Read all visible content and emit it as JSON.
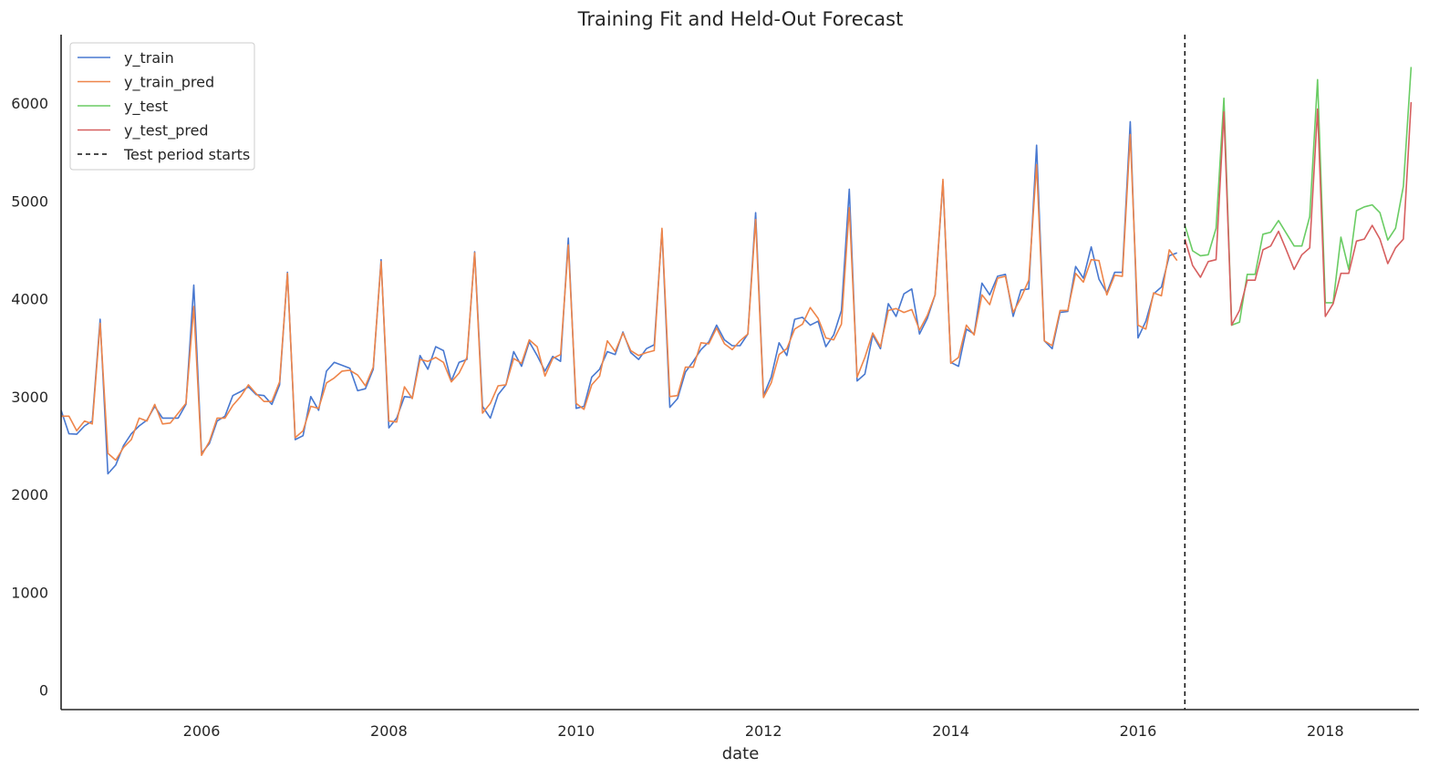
{
  "chart_data": {
    "type": "line",
    "title": "Training Fit and Held-Out Forecast",
    "xlabel": "date",
    "ylabel": "",
    "xlim": [
      "2004-07-01",
      "2019-01-01"
    ],
    "ylim": [
      -200,
      6700
    ],
    "x_ticks": [
      "2006",
      "2008",
      "2010",
      "2012",
      "2014",
      "2016",
      "2018"
    ],
    "y_ticks": [
      "0",
      "1000",
      "2000",
      "3000",
      "4000",
      "5000",
      "6000"
    ],
    "grid": false,
    "legend_position": "top-left",
    "test_start": "2016-07-01",
    "test_start_label": "Test period starts",
    "series": [
      {
        "name": "y_train",
        "color": "#4878d0",
        "start": "2004-07-01",
        "values": [
          2860,
          2620,
          2615,
          2700,
          2750,
          3790,
          2210,
          2300,
          2500,
          2620,
          2700,
          2760,
          2900,
          2780,
          2780,
          2780,
          2920,
          4140,
          2420,
          2520,
          2750,
          2800,
          3010,
          3050,
          3100,
          3020,
          3010,
          2920,
          3120,
          4270,
          2560,
          2600,
          3000,
          2860,
          3260,
          3350,
          3320,
          3290,
          3060,
          3080,
          3280,
          4400,
          2680,
          2780,
          3000,
          2990,
          3420,
          3280,
          3510,
          3470,
          3160,
          3350,
          3380,
          4480,
          2900,
          2780,
          3020,
          3120,
          3460,
          3310,
          3560,
          3420,
          3260,
          3410,
          3360,
          4620,
          2880,
          2900,
          3200,
          3280,
          3460,
          3430,
          3660,
          3450,
          3380,
          3490,
          3530,
          4700,
          2890,
          2980,
          3250,
          3360,
          3480,
          3560,
          3730,
          3580,
          3520,
          3520,
          3640,
          4880,
          3010,
          3200,
          3550,
          3420,
          3790,
          3810,
          3730,
          3770,
          3510,
          3630,
          3880,
          5120,
          3160,
          3230,
          3630,
          3490,
          3950,
          3820,
          4050,
          4100,
          3640,
          3800,
          4040,
          5200,
          3350,
          3310,
          3690,
          3640,
          4160,
          4040,
          4230,
          4250,
          3820,
          4090,
          4100,
          5570,
          3570,
          3490,
          3860,
          3870,
          4330,
          4210,
          4530,
          4200,
          4060,
          4270,
          4270,
          5810,
          3600,
          3770,
          4050,
          4120,
          4440,
          4470
        ]
      },
      {
        "name": "y_train_pred",
        "color": "#ee854a",
        "start": "2004-07-01",
        "values": [
          2800,
          2800,
          2650,
          2750,
          2720,
          3750,
          2420,
          2350,
          2480,
          2560,
          2780,
          2750,
          2920,
          2720,
          2730,
          2830,
          2930,
          3920,
          2400,
          2540,
          2780,
          2780,
          2910,
          3000,
          3120,
          3030,
          2950,
          2950,
          3150,
          4260,
          2580,
          2650,
          2900,
          2880,
          3140,
          3190,
          3260,
          3270,
          3220,
          3110,
          3300,
          4380,
          2750,
          2740,
          3100,
          2980,
          3380,
          3360,
          3400,
          3350,
          3150,
          3240,
          3400,
          4470,
          2830,
          2930,
          3110,
          3120,
          3390,
          3340,
          3580,
          3510,
          3210,
          3390,
          3430,
          4550,
          2930,
          2870,
          3120,
          3210,
          3570,
          3460,
          3650,
          3470,
          3420,
          3450,
          3470,
          4720,
          3000,
          3010,
          3300,
          3300,
          3550,
          3540,
          3700,
          3540,
          3480,
          3570,
          3640,
          4810,
          2990,
          3140,
          3430,
          3490,
          3690,
          3740,
          3910,
          3800,
          3600,
          3580,
          3740,
          4930,
          3200,
          3400,
          3650,
          3510,
          3880,
          3900,
          3860,
          3890,
          3680,
          3830,
          4040,
          5220,
          3340,
          3400,
          3730,
          3630,
          4040,
          3940,
          4210,
          4230,
          3860,
          4010,
          4190,
          5370,
          3570,
          3520,
          3880,
          3880,
          4260,
          4170,
          4400,
          4390,
          4040,
          4240,
          4230,
          5680,
          3730,
          3690,
          4060,
          4030,
          4500,
          4390
        ]
      },
      {
        "name": "y_test",
        "color": "#6acc64",
        "start": "2016-07-01",
        "values": [
          4750,
          4490,
          4440,
          4450,
          4720,
          6050,
          3730,
          3760,
          4250,
          4250,
          4660,
          4680,
          4800,
          4670,
          4540,
          4540,
          4840,
          6240,
          3960,
          3960,
          4630,
          4300,
          4900,
          4940,
          4960,
          4880,
          4600,
          4720,
          5150,
          6370
        ]
      },
      {
        "name": "y_test_pred",
        "color": "#d65f5f",
        "start": "2016-07-01",
        "values": [
          4610,
          4340,
          4220,
          4380,
          4400,
          5910,
          3730,
          3880,
          4190,
          4190,
          4500,
          4540,
          4690,
          4500,
          4300,
          4450,
          4520,
          5940,
          3820,
          3950,
          4260,
          4260,
          4590,
          4610,
          4750,
          4610,
          4360,
          4520,
          4610,
          6010
        ]
      }
    ]
  }
}
